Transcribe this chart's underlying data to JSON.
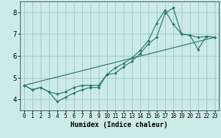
{
  "xlabel": "Humidex (Indice chaleur)",
  "bg_color": "#cceae8",
  "grid_color": "#a0c8c8",
  "line_color": "#2a7a6e",
  "xlim": [
    -0.5,
    23.5
  ],
  "ylim": [
    3.5,
    8.5
  ],
  "yticks": [
    4,
    5,
    6,
    7,
    8
  ],
  "xticks": [
    0,
    1,
    2,
    3,
    4,
    5,
    6,
    7,
    8,
    9,
    10,
    11,
    12,
    13,
    14,
    15,
    16,
    17,
    18,
    19,
    20,
    21,
    22,
    23
  ],
  "line1_x": [
    0,
    1,
    2,
    3,
    4,
    5,
    6,
    7,
    8,
    9,
    10,
    11,
    12,
    13,
    14,
    15,
    16,
    17,
    18,
    19,
    20,
    21,
    22,
    23
  ],
  "line1_y": [
    4.65,
    4.45,
    4.55,
    4.35,
    3.9,
    4.1,
    4.3,
    4.45,
    4.55,
    4.55,
    5.15,
    5.2,
    5.5,
    5.75,
    6.1,
    6.55,
    6.85,
    7.95,
    8.2,
    7.0,
    6.95,
    6.3,
    6.9,
    6.85
  ],
  "line2_x": [
    0,
    1,
    2,
    3,
    4,
    5,
    6,
    7,
    8,
    9,
    10,
    11,
    12,
    13,
    14,
    15,
    16,
    17,
    18,
    19,
    20,
    21,
    22,
    23
  ],
  "line2_y": [
    4.65,
    4.45,
    4.55,
    4.35,
    4.25,
    4.35,
    4.55,
    4.65,
    4.65,
    4.65,
    5.15,
    5.45,
    5.65,
    5.9,
    6.25,
    6.7,
    7.5,
    8.1,
    7.45,
    7.0,
    6.95,
    6.85,
    6.9,
    6.85
  ],
  "line3_x": [
    0,
    23
  ],
  "line3_y": [
    4.65,
    6.85
  ]
}
